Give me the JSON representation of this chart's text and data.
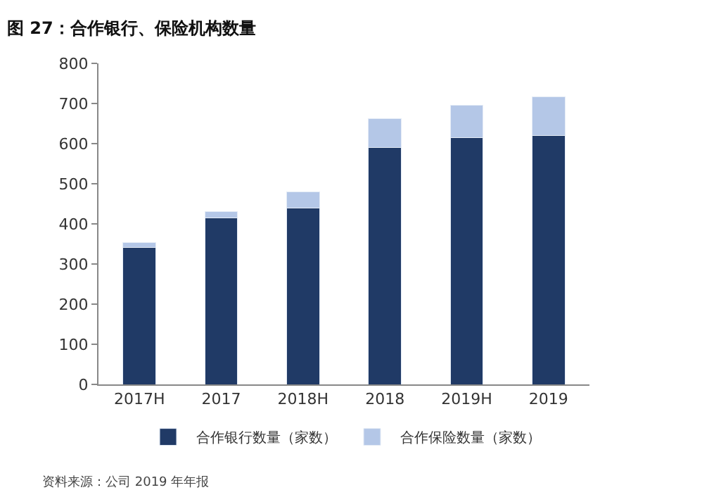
{
  "chart_data": {
    "type": "bar",
    "title": "图 27：合作银行、保险机构数量",
    "categories": [
      "2017H",
      "2017",
      "2018H",
      "2018",
      "2019H",
      "2019"
    ],
    "stacked": true,
    "series": [
      {
        "name": "合作银行数量（家数）",
        "color": "#203a66",
        "values": [
          342,
          415,
          440,
          590,
          615,
          620
        ]
      },
      {
        "name": "合作保险数量（家数）",
        "color": "#b4c7e7",
        "values": [
          12,
          15,
          39,
          72,
          80,
          97
        ]
      }
    ],
    "ylim": [
      0,
      800
    ],
    "yticks": [
      0,
      100,
      200,
      300,
      400,
      500,
      600,
      700,
      800
    ],
    "legend": "bottom",
    "annotations": [
      "资料来源：公司 2019 年年报"
    ]
  }
}
